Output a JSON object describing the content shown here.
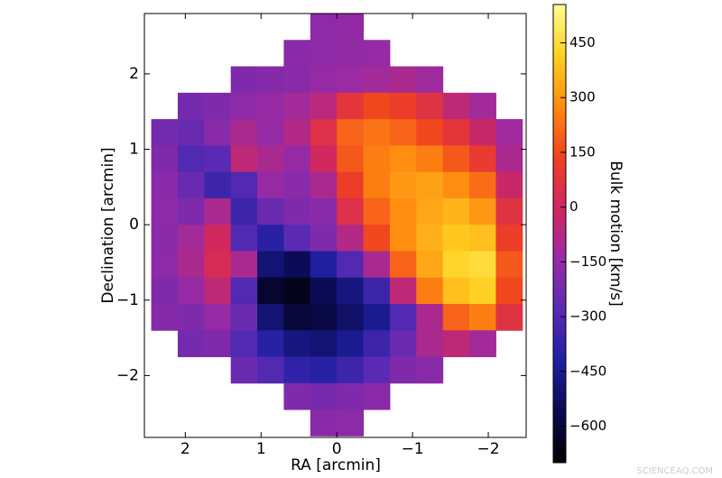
{
  "chart_data": {
    "type": "heatmap",
    "xlabel": "RA [arcmin]",
    "ylabel": "Declination [arcmin]",
    "colorbar_label": "Bulk motion [km/s]",
    "watermark": "SCIENCEAQ.COM",
    "xlim": [
      2.54,
      -2.5
    ],
    "ylim": [
      -2.82,
      2.8
    ],
    "xticks": [
      2,
      1,
      0,
      {
        "value": -1,
        "label": "−1"
      },
      {
        "value": -2,
        "label": "−2"
      }
    ],
    "yticks": [
      {
        "value": -2,
        "label": "−2"
      },
      {
        "value": -1,
        "label": "−1"
      },
      0,
      1,
      2
    ],
    "clim": [
      -700,
      555
    ],
    "cticks": [
      {
        "value": -600,
        "label": "−600"
      },
      {
        "value": -450,
        "label": "−450"
      },
      {
        "value": -300,
        "label": "−300"
      },
      {
        "value": -150,
        "label": "−150"
      },
      0,
      150,
      300,
      450
    ],
    "colormap": [
      "#000000",
      "#0a0a50",
      "#1f1fa0",
      "#5a2ab4",
      "#9a2aa4",
      "#d02860",
      "#f04020",
      "#ff8c10",
      "#ffd020",
      "#ffff90"
    ],
    "x": [
      2.275,
      1.925,
      1.575,
      1.225,
      0.875,
      0.525,
      0.175,
      -0.175,
      -0.525,
      -0.875,
      -1.225,
      -1.575,
      -1.925,
      -2.275
    ],
    "y": [
      2.625,
      2.275,
      1.925,
      1.575,
      1.225,
      0.875,
      0.525,
      0.175,
      -0.175,
      -0.525,
      -0.875,
      -1.225,
      -1.575,
      -1.925,
      -2.275,
      -2.625
    ],
    "z": [
      [
        null,
        null,
        null,
        null,
        null,
        null,
        -170,
        -160,
        null,
        null,
        null,
        null,
        null,
        null
      ],
      [
        null,
        null,
        null,
        null,
        null,
        -180,
        -170,
        -160,
        -150,
        null,
        null,
        null,
        null,
        null
      ],
      [
        null,
        null,
        null,
        -200,
        -190,
        -180,
        -150,
        -140,
        -120,
        -100,
        -130,
        null,
        null,
        null
      ],
      [
        null,
        -220,
        -200,
        -170,
        -150,
        -120,
        -60,
        80,
        150,
        120,
        60,
        -50,
        -120,
        null
      ],
      [
        -230,
        -250,
        -180,
        -100,
        -150,
        -80,
        50,
        200,
        230,
        200,
        150,
        80,
        -20,
        -130
      ],
      [
        -200,
        -300,
        -280,
        -50,
        -100,
        -150,
        0,
        180,
        250,
        280,
        250,
        180,
        100,
        -100
      ],
      [
        -180,
        -250,
        -350,
        -300,
        -150,
        -180,
        -100,
        120,
        250,
        300,
        320,
        280,
        220,
        -20
      ],
      [
        -170,
        -200,
        -100,
        -350,
        -250,
        -200,
        -180,
        50,
        200,
        280,
        330,
        360,
        300,
        60
      ],
      [
        -180,
        -120,
        0,
        -300,
        -400,
        -280,
        -200,
        -80,
        150,
        280,
        350,
        400,
        380,
        120
      ],
      [
        -170,
        -100,
        20,
        -100,
        -500,
        -550,
        -420,
        -300,
        -100,
        200,
        330,
        430,
        450,
        180
      ],
      [
        -200,
        -150,
        -50,
        -300,
        -620,
        -650,
        -550,
        -480,
        -350,
        -50,
        250,
        380,
        420,
        150
      ],
      [
        -190,
        -200,
        -150,
        -250,
        -500,
        -600,
        -580,
        -520,
        -450,
        -300,
        -100,
        200,
        250,
        60
      ],
      [
        null,
        -220,
        -200,
        -300,
        -400,
        -480,
        -500,
        -450,
        -350,
        -250,
        -100,
        -50,
        -120,
        null
      ],
      [
        null,
        null,
        null,
        -250,
        -300,
        -380,
        -400,
        -350,
        -280,
        -200,
        -180,
        null,
        null,
        null
      ],
      [
        null,
        null,
        null,
        null,
        null,
        -200,
        -220,
        -200,
        -180,
        null,
        null,
        null,
        null,
        null
      ],
      [
        null,
        null,
        null,
        null,
        null,
        null,
        -180,
        -170,
        null,
        null,
        null,
        null,
        null,
        null
      ]
    ]
  }
}
